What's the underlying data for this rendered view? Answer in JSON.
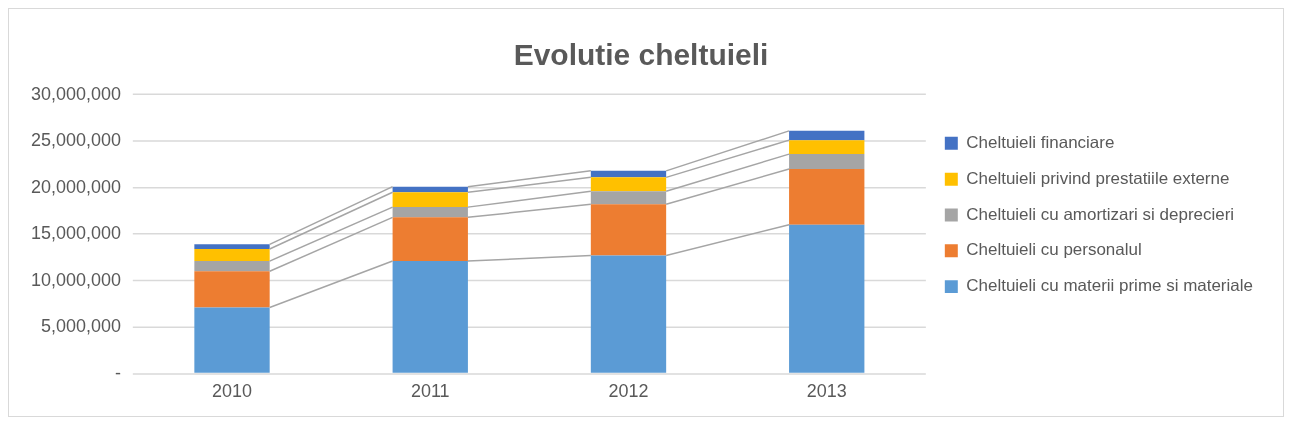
{
  "chart_data": {
    "type": "bar",
    "title": "Evolutie cheltuieli",
    "stacked": true,
    "categories": [
      "2010",
      "2011",
      "2012",
      "2013"
    ],
    "series": [
      {
        "name": "Cheltuieli cu materii prime si materiale",
        "color": "#5b9bd5",
        "values": [
          7100000,
          12100000,
          12700000,
          16000000
        ]
      },
      {
        "name": "Cheltuieli cu personalul",
        "color": "#ed7d31",
        "values": [
          3900000,
          4700000,
          5500000,
          6000000
        ]
      },
      {
        "name": "Cheltuieli cu amortizari si deprecieri",
        "color": "#a5a5a5",
        "values": [
          1100000,
          1100000,
          1400000,
          1600000
        ]
      },
      {
        "name": "Cheltuieli privind prestatiile externe",
        "color": "#ffc000",
        "values": [
          1300000,
          1600000,
          1500000,
          1500000
        ]
      },
      {
        "name": "Cheltuieli financiare",
        "color": "#4472c4",
        "values": [
          500000,
          600000,
          700000,
          1000000
        ]
      }
    ],
    "ylim": [
      0,
      30000000
    ],
    "yticks": [
      {
        "value": 0,
        "label": "-"
      },
      {
        "value": 5000000,
        "label": "5,000,000"
      },
      {
        "value": 10000000,
        "label": "10,000,000"
      },
      {
        "value": 15000000,
        "label": "15,000,000"
      },
      {
        "value": 20000000,
        "label": "20,000,000"
      },
      {
        "value": 25000000,
        "label": "25,000,000"
      },
      {
        "value": 30000000,
        "label": "30,000,000"
      }
    ],
    "grid": "y",
    "legend": "right"
  }
}
